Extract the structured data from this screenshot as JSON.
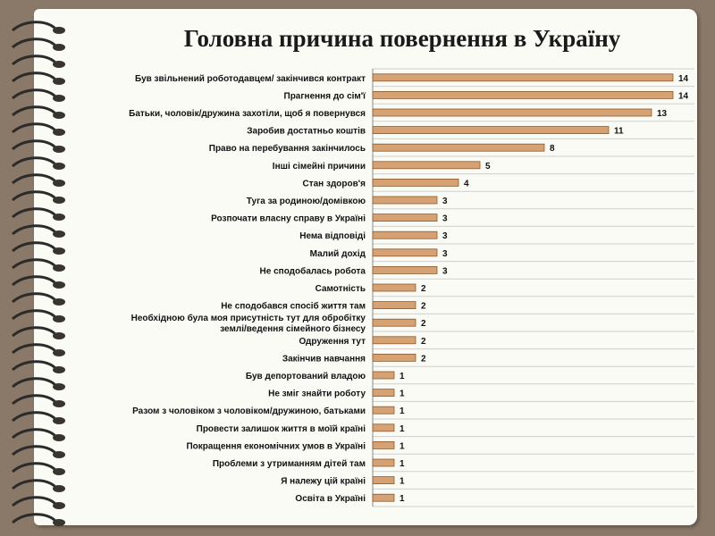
{
  "title": "Головна причина повернення в Україну",
  "colors": {
    "bar": "#d6a273",
    "bar_stroke": "#8a5a30",
    "grid": "#cfcfcf",
    "text": "#111111"
  },
  "chart_data": {
    "type": "bar",
    "orientation": "horizontal",
    "title": "Головна причина повернення в Україну",
    "xlim": [
      0,
      15
    ],
    "grid": true,
    "categories": [
      "Був звільнений роботодавцем/ закінчився контракт",
      "Прагнення до сім'ї",
      "Батьки, чоловік/дружина захотіли, щоб я повернувся",
      "Заробив достатньо коштів",
      "Право на перебування закінчилось",
      "Інші сімейні причини",
      "Стан здоров'я",
      "Туга за родиною/домівкою",
      "Розпочати власну справу в Україні",
      "Нема відповіді",
      "Малий дохід",
      "Не сподобалась робота",
      "Самотність",
      "Не сподобався спосіб життя там",
      "Необхідною була моя присутність тут для обробітку землі/ведення сімейного бізнесу",
      "Одруження тут",
      "Закінчив навчання",
      "Був депортований владою",
      "Не зміг знайти роботу",
      "Разом з чоловіком з чоловіком/дружиною, батьками",
      "Провести залишок життя в моїй країні",
      "Покращення економічних умов в Україні",
      "Проблеми з утриманням дітей там",
      "Я належу цій країні",
      "Освіта в Україні"
    ],
    "category_lines": {
      "14": [
        "Необхідною була моя присутність тут для обробітку",
        "землі/ведення сімейного бізнесу"
      ]
    },
    "values": [
      14,
      14,
      13,
      11,
      8,
      5,
      4,
      3,
      3,
      3,
      3,
      3,
      2,
      2,
      2,
      2,
      2,
      1,
      1,
      1,
      1,
      1,
      1,
      1,
      1
    ]
  }
}
